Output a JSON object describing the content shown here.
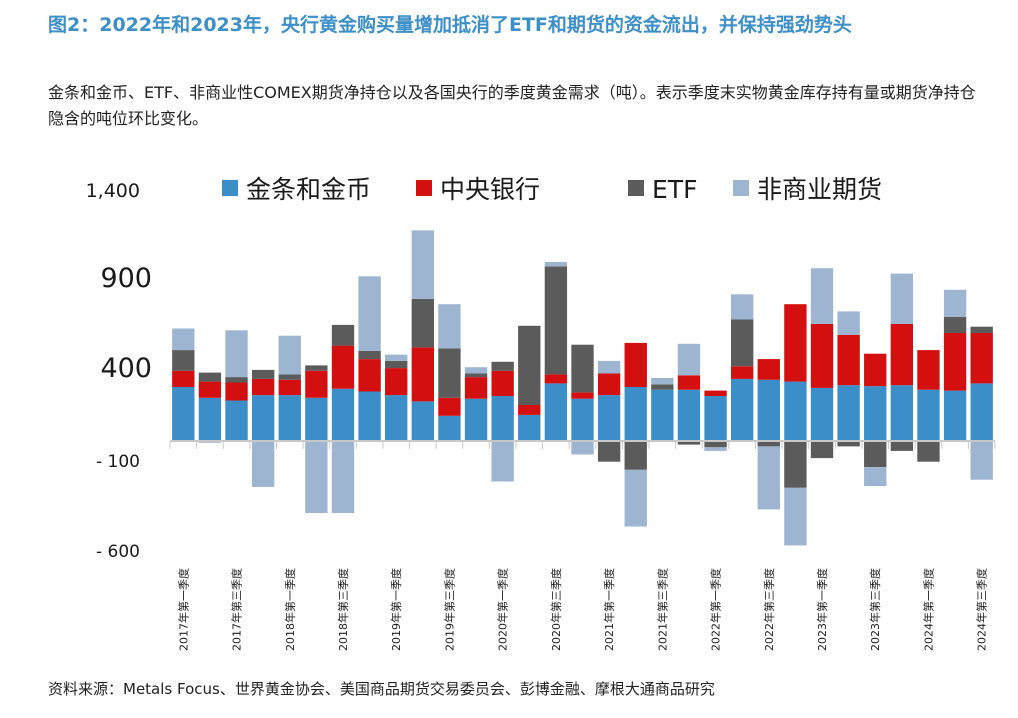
{
  "title": "图2：2022年和2023年，央行黄金购买量增加抵消了ETF和期货的资金流出，并保持强劲势头",
  "subtitle": "金条和金币、ETF、非商业性COMEX期货净持仓以及各国央行的季度黄金需求（吨）。表示季度末实物黄金库存持有量或期货净持仓隐含的吨位环比变化。",
  "source": "资料来源：Metals Focus、世界黄金协会、美国商品期货交易委员会、彭博金融、摩根大通商品研究",
  "chart_data": {
    "type": "bar",
    "stacked": true,
    "ytick_labels": [
      "1,400",
      "900",
      "400",
      "- 100",
      "- 600"
    ],
    "yticks": [
      1400,
      900,
      400,
      -100,
      -600
    ],
    "x_tick_labels": [
      "2017年第一季度",
      "2017年第三季度",
      "2018年第一季度",
      "2018年第三季度",
      "2019年第一季度",
      "2019年第三季度",
      "2020年第一季度",
      "2020年第三季度",
      "2021年第一季度",
      "2021年第三季度",
      "2022年第一季度",
      "2022年第三季度",
      "2023年第一季度",
      "2023年第三季度",
      "2024年第一季度",
      "2024年第三季度"
    ],
    "legend_position": "top",
    "colors": {
      "bars_coins": "#3b8ec8",
      "central_banks": "#d40f0f",
      "etf": "#5b5b5b",
      "futures": "#9eb5d1"
    },
    "series": [
      {
        "name": "金条和金币",
        "key": "bars_coins",
        "values": [
          300,
          240,
          225,
          255,
          255,
          240,
          290,
          275,
          255,
          220,
          140,
          235,
          250,
          145,
          320,
          235,
          255,
          300,
          285,
          285,
          250,
          345,
          340,
          330,
          295,
          310,
          305,
          310,
          285,
          280,
          320
        ]
      },
      {
        "name": "中央银行",
        "key": "central_banks",
        "values": [
          90,
          90,
          100,
          90,
          85,
          150,
          240,
          180,
          150,
          300,
          100,
          120,
          140,
          55,
          50,
          35,
          120,
          245,
          0,
          80,
          30,
          70,
          115,
          430,
          355,
          280,
          180,
          340,
          220,
          320,
          280
        ]
      },
      {
        "name": "ETF",
        "key": "etf",
        "values": [
          115,
          50,
          30,
          50,
          30,
          30,
          115,
          45,
          40,
          270,
          275,
          20,
          50,
          440,
          600,
          265,
          -115,
          -160,
          30,
          -20,
          -35,
          260,
          -30,
          -260,
          -95,
          -30,
          -145,
          -55,
          -115,
          90,
          35
        ]
      },
      {
        "name": "非商业期货",
        "key": "futures",
        "values": [
          120,
          -10,
          260,
          -255,
          215,
          -400,
          -400,
          415,
          35,
          380,
          245,
          35,
          -225,
          0,
          25,
          -75,
          70,
          -315,
          35,
          175,
          -20,
          140,
          -350,
          -320,
          310,
          130,
          -105,
          280,
          0,
          150,
          -215
        ]
      }
    ]
  }
}
